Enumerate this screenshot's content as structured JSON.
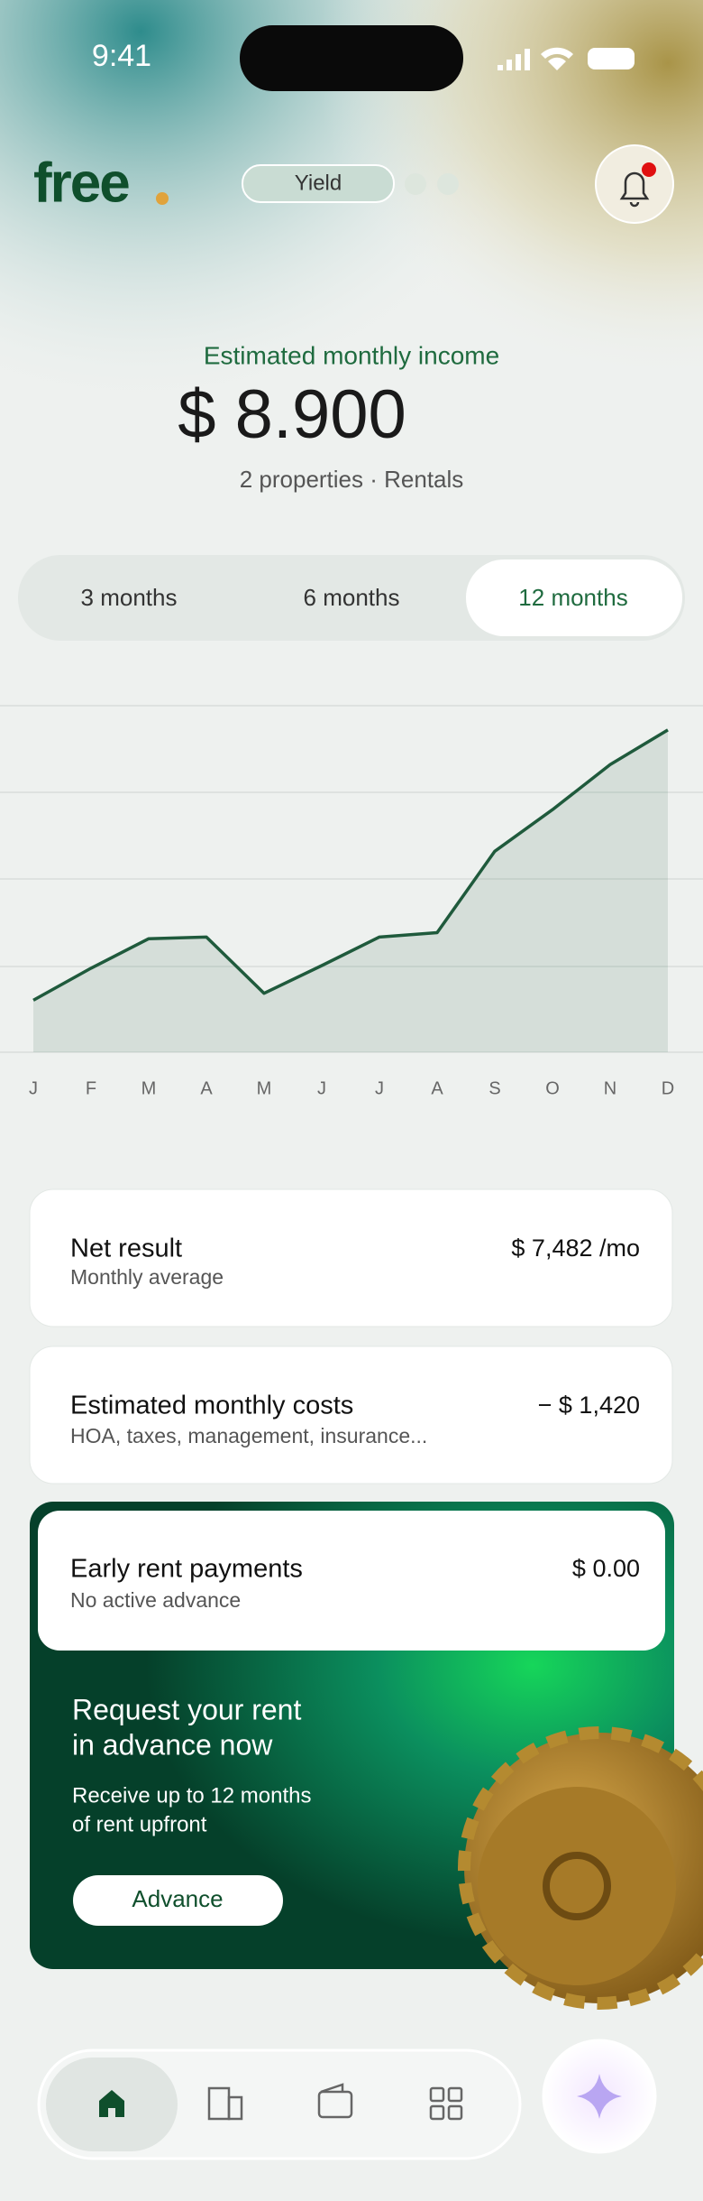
{
  "status_bar": {
    "time": "9:41"
  },
  "header": {
    "logo": "free",
    "tab": "Yield"
  },
  "summary": {
    "label": "Estimated monthly income",
    "amount": "$ 8.900",
    "detail": "2 properties · Rentals"
  },
  "periods": [
    "3 months",
    "6 months",
    "12 months"
  ],
  "chart_data": {
    "type": "line",
    "categories": [
      "J",
      "F",
      "M",
      "A",
      "M",
      "J",
      "J",
      "A",
      "S",
      "O",
      "N",
      "D"
    ],
    "values": [
      0.6,
      0.97,
      1.31,
      1.33,
      0.68,
      1.0,
      1.33,
      1.38,
      2.32,
      2.8,
      3.32,
      3.72
    ],
    "color": "#1f5a3c",
    "ylim": [
      0,
      4
    ]
  },
  "cards": [
    {
      "title": "Net result",
      "subtitle": "Monthly average",
      "value": "$ 7,482 /mo"
    },
    {
      "title": "Estimated monthly costs",
      "subtitle": "HOA, taxes, management, insurance...",
      "value": "− $ 1,420"
    },
    {
      "title": "Early rent payments",
      "subtitle": "No active advance",
      "value": "$ 0.00"
    }
  ],
  "promo": {
    "title_line1": "Request your rent",
    "title_line2": "in advance now",
    "text_line1": "Receive up to 12 months",
    "text_line2": "of rent upfront",
    "button": "Advance"
  }
}
